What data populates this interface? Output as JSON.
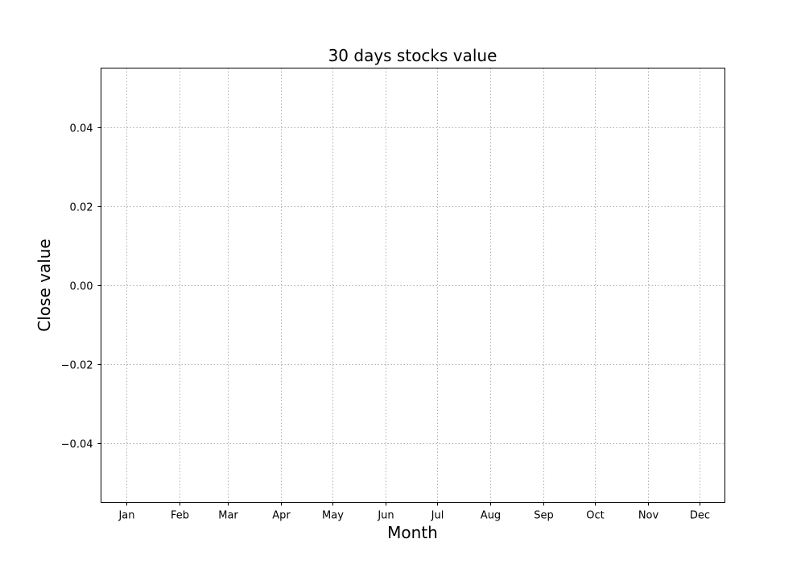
{
  "chart_data": {
    "type": "line",
    "title": "30 days stocks value",
    "xlabel": "Month",
    "ylabel": "Close value",
    "categories": [
      "Jan",
      "Feb",
      "Mar",
      "Apr",
      "May",
      "Jun",
      "Jul",
      "Aug",
      "Sep",
      "Oct",
      "Nov",
      "Dec"
    ],
    "x_ticks_days": [
      15,
      46,
      74,
      105,
      135,
      166,
      196,
      227,
      258,
      288,
      319,
      349
    ],
    "xlim_days": [
      0,
      364
    ],
    "yticks": [
      -0.04,
      -0.02,
      0.0,
      0.02,
      0.04
    ],
    "ytick_labels": [
      "−0.04",
      "−0.02",
      "0.00",
      "0.02",
      "0.04"
    ],
    "ylim": [
      -0.055,
      0.055
    ],
    "series": [],
    "grid": true,
    "grid_style": "dotted",
    "grid_color": "#b0b0b0"
  }
}
